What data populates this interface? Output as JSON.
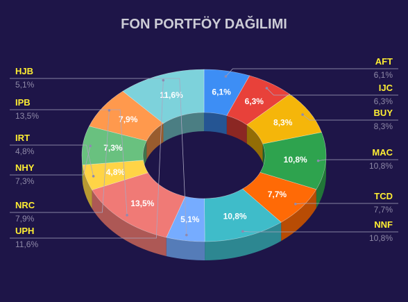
{
  "chart_data": {
    "type": "pie",
    "title": "FON PORTFÖY DAĞILIMI",
    "labels": [
      "AFT",
      "IJC",
      "BUY",
      "MAC",
      "TCD",
      "NNF",
      "HJB",
      "IPB",
      "IRT",
      "NHY",
      "NRC",
      "UPH"
    ],
    "values": [
      6.1,
      6.3,
      8.3,
      10.8,
      7.7,
      10.8,
      5.1,
      13.5,
      4.8,
      7.3,
      7.9,
      11.6
    ],
    "value_labels": [
      "6,1%",
      "6,3%",
      "8,3%",
      "10,8%",
      "7,7%",
      "10,8%",
      "5,1%",
      "13,5%",
      "4,8%",
      "7,3%",
      "7,9%",
      "11,6%"
    ],
    "colors": [
      "#3d8ef5",
      "#e8413a",
      "#f5b60a",
      "#2ea34e",
      "#ff6a06",
      "#3fbcc9",
      "#76acff",
      "#f07a76",
      "#ffd446",
      "#69c17f",
      "#ff994d",
      "#7dd2db"
    ],
    "legend": "sides"
  }
}
